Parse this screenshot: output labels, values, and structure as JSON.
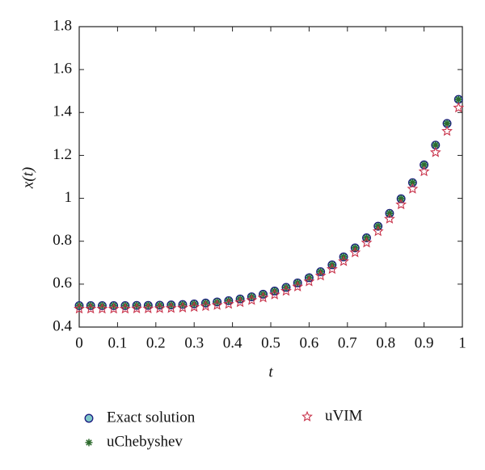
{
  "chart_data": {
    "type": "scatter",
    "x_label": "t",
    "y_label": "x(t)",
    "x": [
      0,
      0.03,
      0.06,
      0.09,
      0.12,
      0.15,
      0.18,
      0.21,
      0.24,
      0.27,
      0.3,
      0.33,
      0.36,
      0.39,
      0.42,
      0.45,
      0.48,
      0.51,
      0.54,
      0.57,
      0.6,
      0.63,
      0.66,
      0.69,
      0.72,
      0.75,
      0.78,
      0.81,
      0.84,
      0.87,
      0.9,
      0.93,
      0.96,
      0.99
    ],
    "series": [
      {
        "name": "Exact solution",
        "color": "#1a1a80",
        "marker": "circle",
        "values": [
          0.5,
          0.5,
          0.5,
          0.5,
          0.5,
          0.501,
          0.501,
          0.502,
          0.503,
          0.505,
          0.508,
          0.512,
          0.517,
          0.523,
          0.531,
          0.541,
          0.553,
          0.568,
          0.585,
          0.606,
          0.63,
          0.658,
          0.69,
          0.727,
          0.769,
          0.816,
          0.87,
          0.93,
          0.998,
          1.073,
          1.156,
          1.248,
          1.349,
          1.461
        ]
      },
      {
        "name": "uChebyshev",
        "color": "#2e6b2e",
        "marker": "asterisk",
        "values": [
          0.5,
          0.5,
          0.5,
          0.5,
          0.5,
          0.501,
          0.501,
          0.502,
          0.503,
          0.505,
          0.508,
          0.512,
          0.517,
          0.523,
          0.531,
          0.541,
          0.553,
          0.568,
          0.585,
          0.606,
          0.63,
          0.658,
          0.69,
          0.727,
          0.769,
          0.816,
          0.87,
          0.93,
          0.998,
          1.073,
          1.156,
          1.248,
          1.349,
          1.461
        ]
      },
      {
        "name": "uVIM",
        "color": "#c8324a",
        "marker": "star",
        "values": [
          0.485,
          0.485,
          0.485,
          0.485,
          0.485,
          0.486,
          0.486,
          0.487,
          0.488,
          0.49,
          0.493,
          0.497,
          0.502,
          0.507,
          0.515,
          0.525,
          0.537,
          0.551,
          0.568,
          0.588,
          0.612,
          0.639,
          0.67,
          0.706,
          0.747,
          0.793,
          0.846,
          0.904,
          0.971,
          1.044,
          1.125,
          1.214,
          1.313,
          1.422
        ]
      }
    ],
    "xlim": [
      0,
      1
    ],
    "xticks": [
      0,
      0.1,
      0.2,
      0.3,
      0.4,
      0.5,
      0.6,
      0.7,
      0.8,
      0.9,
      1
    ],
    "ylim": [
      0.4,
      1.8
    ],
    "yticks": [
      0.4,
      0.6,
      0.8,
      1,
      1.2,
      1.4,
      1.6,
      1.8
    ]
  }
}
